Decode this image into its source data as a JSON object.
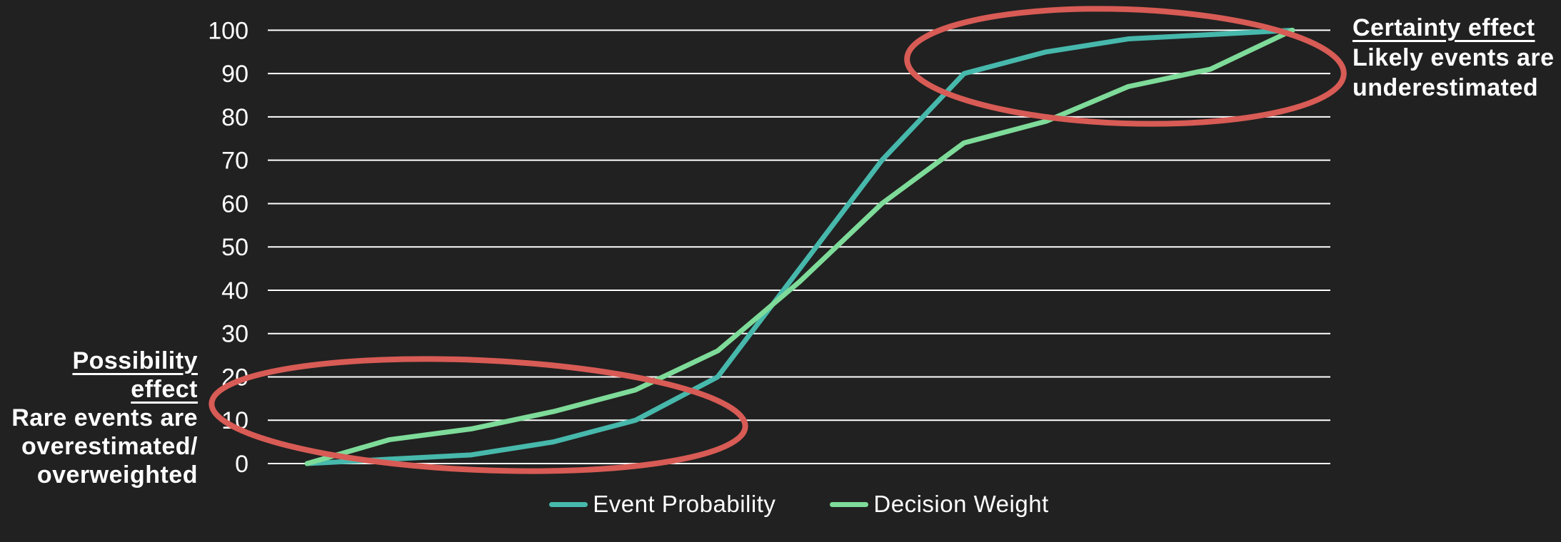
{
  "chart_data": {
    "type": "line",
    "title": "",
    "xlabel": "",
    "ylabel": "",
    "x_tick_labels_visible": false,
    "y_axis": {
      "min": 0,
      "max": 100,
      "tick_step": 10,
      "ticks": [
        0,
        10,
        20,
        30,
        40,
        50,
        60,
        70,
        80,
        90,
        100
      ]
    },
    "grid": "horizontal-only",
    "legend_position": "bottom-center",
    "x": [
      0,
      1,
      2,
      3,
      4,
      5,
      6,
      7,
      8,
      9,
      10,
      11,
      12
    ],
    "series": [
      {
        "name": "Event Probability",
        "color": "#47b8ac",
        "values": [
          0,
          1,
          2,
          5,
          10,
          20,
          45,
          70,
          90,
          95,
          98,
          99,
          100
        ]
      },
      {
        "name": "Decision Weight",
        "color": "#7edb99",
        "values": [
          0,
          5.5,
          8,
          12,
          17,
          26,
          42,
          60,
          74,
          79,
          87,
          91,
          100
        ]
      }
    ]
  },
  "annotations": {
    "certainty": {
      "title": "Certainty effect",
      "lines": [
        "Likely events are",
        "underestimated"
      ]
    },
    "possibility": {
      "title": "Possibility effect",
      "lines": [
        "Rare events are",
        "overestimated/",
        "overweighted"
      ]
    }
  },
  "colors": {
    "background": "#212121",
    "text": "#ffffff",
    "gridline": "#ffffff",
    "highlight_oval": "#d85b55"
  }
}
